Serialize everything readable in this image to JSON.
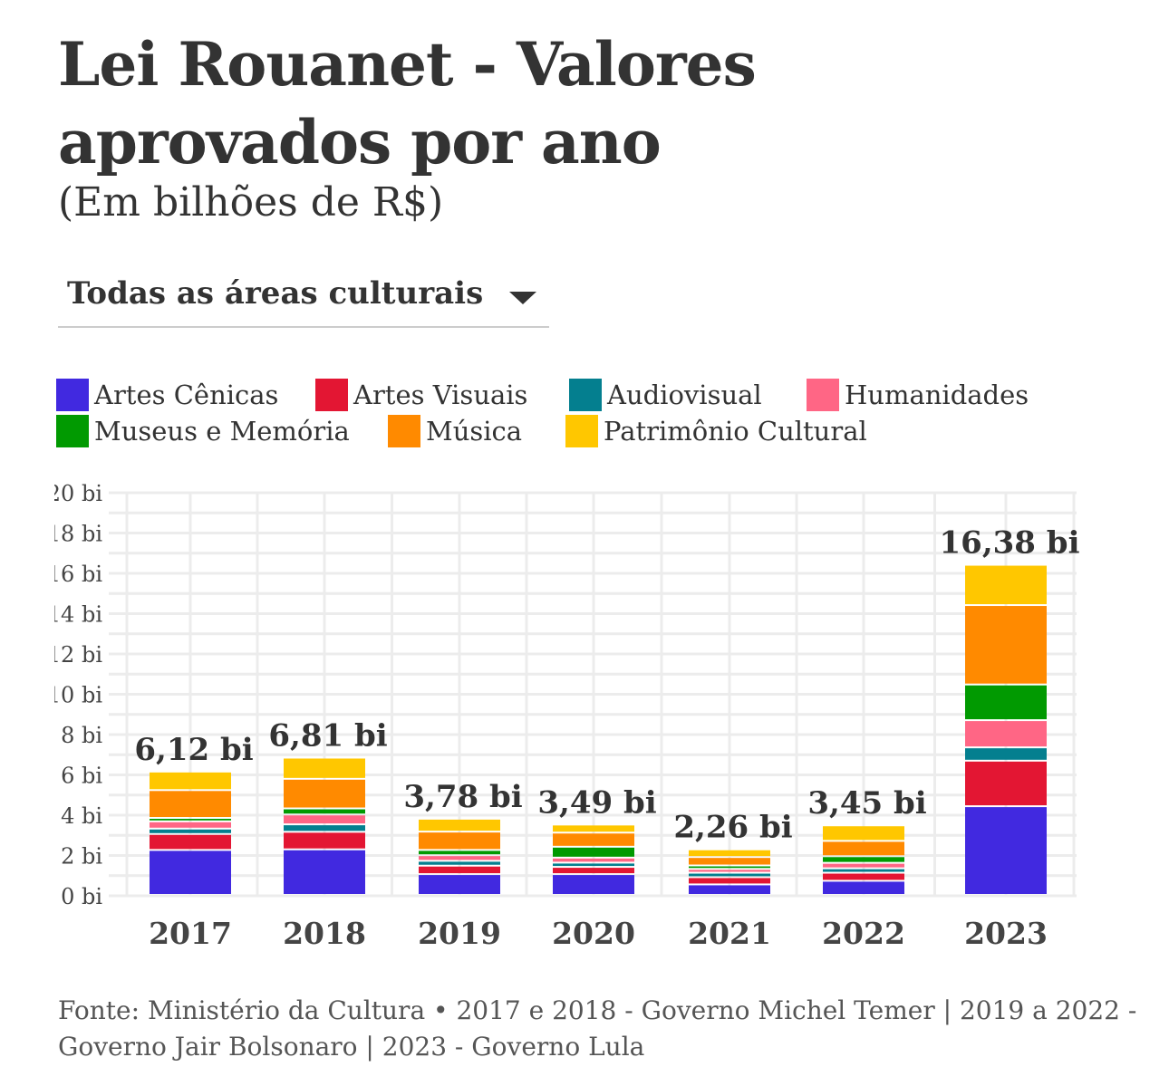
{
  "header": {
    "title": "Lei Rouanet - Valores aprovados por ano",
    "subtitle": "(Em bilhões de R$)"
  },
  "filter": {
    "selected": "Todas as áreas culturais",
    "icon": "caret-down-icon"
  },
  "source": "Fonte: Ministério da Cultura • 2017 e 2018 - Governo Michel Temer | 2019 a 2022 - Governo Jair Bolsonaro | 2023 - Governo Lula",
  "chart_data": {
    "type": "bar",
    "stacked": true,
    "title": "Lei Rouanet - Valores aprovados por ano",
    "subtitle": "(Em bilhões de R$)",
    "xlabel": "",
    "ylabel": "",
    "ylim": [
      0,
      20
    ],
    "yticks": [
      0,
      2,
      4,
      6,
      8,
      10,
      12,
      14,
      16,
      18,
      20
    ],
    "ytick_labels": [
      "0 bi",
      "2 bi",
      "4 bi",
      "6 bi",
      "8 bi",
      "10 bi",
      "12 bi",
      "14 bi",
      "16 bi",
      "18 bi",
      "20 bi"
    ],
    "grid": true,
    "legend_position": "top",
    "categories": [
      "2017",
      "2018",
      "2019",
      "2020",
      "2021",
      "2022",
      "2023"
    ],
    "totals": [
      6.12,
      6.81,
      3.78,
      3.49,
      2.26,
      3.45,
      16.38
    ],
    "total_labels": [
      "6,12 bi",
      "6,81 bi",
      "3,78 bi",
      "3,49 bi",
      "2,26 bi",
      "3,45 bi",
      "16,38 bi"
    ],
    "series": [
      {
        "name": "Artes Cênicas",
        "color": "#4129e0",
        "values": [
          2.23,
          2.26,
          1.03,
          1.03,
          0.52,
          0.7,
          4.4
        ]
      },
      {
        "name": "Artes Visuais",
        "color": "#e31633",
        "values": [
          0.79,
          0.87,
          0.42,
          0.36,
          0.36,
          0.4,
          2.26
        ]
      },
      {
        "name": "Audiovisual",
        "color": "#047f8f",
        "values": [
          0.27,
          0.37,
          0.24,
          0.21,
          0.22,
          0.22,
          0.66
        ]
      },
      {
        "name": "Humanidades",
        "color": "#ff6685",
        "values": [
          0.36,
          0.49,
          0.28,
          0.25,
          0.19,
          0.27,
          1.35
        ]
      },
      {
        "name": "Museus e Memória",
        "color": "#019a01",
        "values": [
          0.17,
          0.3,
          0.26,
          0.54,
          0.17,
          0.33,
          1.77
        ]
      },
      {
        "name": "Música",
        "color": "#ff8a00",
        "values": [
          1.38,
          1.47,
          0.91,
          0.7,
          0.42,
          0.76,
          3.94
        ]
      },
      {
        "name": "Patrimônio Cultural",
        "color": "#ffc700",
        "values": [
          0.92,
          1.05,
          0.64,
          0.4,
          0.38,
          0.77,
          2.0
        ]
      }
    ]
  }
}
